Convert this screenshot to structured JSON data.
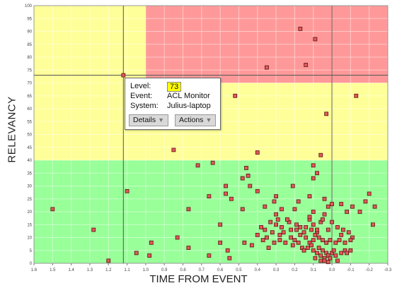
{
  "chart_data": {
    "type": "scatter",
    "xlabel": "TIME FROM EVENT",
    "ylabel": "RELEVANCY",
    "xlim": [
      1.6,
      -0.3
    ],
    "ylim": [
      0,
      100
    ],
    "x_reversed": true,
    "x_ticks": [
      "1.6",
      "1.5",
      "1.4",
      "1.3",
      "1.2",
      "1.1",
      "1.0",
      "0.9",
      "0.8",
      "0.7",
      "0.6",
      "0.5",
      "0.4",
      "0.3",
      "0.2",
      "0.1",
      "0.0",
      "-0.1",
      "-0.2",
      "-0.3"
    ],
    "y_ticks": [
      "0",
      "5",
      "10",
      "15",
      "20",
      "25",
      "30",
      "35",
      "40",
      "45",
      "50",
      "55",
      "60",
      "65",
      "70",
      "75",
      "80",
      "85",
      "90",
      "95",
      "100"
    ],
    "zones": [
      {
        "name": "high",
        "y_from": 70,
        "y_to": 100,
        "x_from": 1.6,
        "x_to": -0.3,
        "color": "#ffff99"
      },
      {
        "name": "critical",
        "y_from": 70,
        "y_to": 100,
        "x_from": 1.0,
        "x_to": -0.3,
        "color": "#ff9999"
      },
      {
        "name": "medium",
        "y_from": 40,
        "y_to": 70,
        "x_from": 1.6,
        "x_to": -0.3,
        "color": "#ffff99"
      },
      {
        "name": "low",
        "y_from": 0,
        "y_to": 40,
        "x_from": 1.6,
        "x_to": -0.3,
        "color": "#99ff99"
      }
    ],
    "crosshair": {
      "x": 1.12,
      "y": 73
    },
    "reference_line_x": 0.0,
    "marker_color": "#e05a5a",
    "points": [
      [
        1.12,
        73
      ],
      [
        0.17,
        91
      ],
      [
        0.09,
        87
      ],
      [
        0.35,
        76
      ],
      [
        0.14,
        77
      ],
      [
        0.52,
        65
      ],
      [
        -0.13,
        65
      ],
      [
        0.03,
        58
      ],
      [
        0.85,
        44
      ],
      [
        0.4,
        43
      ],
      [
        0.06,
        42
      ],
      [
        0.1,
        38
      ],
      [
        0.72,
        38
      ],
      [
        0.64,
        39
      ],
      [
        0.46,
        37
      ],
      [
        0.45,
        34
      ],
      [
        0.44,
        30
      ],
      [
        0.48,
        33
      ],
      [
        0.4,
        28
      ],
      [
        0.08,
        35
      ],
      [
        0.1,
        33
      ],
      [
        0.21,
        30
      ],
      [
        1.1,
        28
      ],
      [
        0.57,
        30
      ],
      [
        0.66,
        26
      ],
      [
        0.57,
        27
      ],
      [
        0.54,
        25
      ],
      [
        0.3,
        26
      ],
      [
        -0.2,
        27
      ],
      [
        -0.18,
        24
      ],
      [
        0.12,
        26
      ],
      [
        0.04,
        25
      ],
      [
        0.18,
        24
      ],
      [
        0.31,
        24
      ],
      [
        0.2,
        21
      ],
      [
        0.0,
        23
      ],
      [
        -0.05,
        23
      ],
      [
        -0.08,
        20
      ],
      [
        0.1,
        20
      ],
      [
        0.02,
        22
      ],
      [
        0.36,
        22
      ],
      [
        -0.11,
        22
      ],
      [
        1.5,
        21
      ],
      [
        0.77,
        21
      ],
      [
        0.48,
        21
      ],
      [
        0.27,
        21
      ],
      [
        -0.15,
        20
      ],
      [
        0.3,
        19
      ],
      [
        0.12,
        17
      ],
      [
        -0.23,
        22
      ],
      [
        0.04,
        19
      ],
      [
        0.06,
        16
      ],
      [
        0.0,
        16
      ],
      [
        0.05,
        17
      ],
      [
        0.12,
        18
      ],
      [
        0.1,
        15
      ],
      [
        0.6,
        15
      ],
      [
        0.3,
        15
      ],
      [
        0.27,
        14
      ],
      [
        0.22,
        13
      ],
      [
        0.36,
        13
      ],
      [
        0.4,
        11
      ],
      [
        0.19,
        13
      ],
      [
        0.15,
        12
      ],
      [
        0.08,
        12
      ],
      [
        -0.05,
        11
      ],
      [
        -0.11,
        10
      ],
      [
        -0.22,
        15
      ],
      [
        1.28,
        13
      ],
      [
        0.97,
        8
      ],
      [
        0.83,
        10
      ],
      [
        0.77,
        6
      ],
      [
        0.6,
        8
      ],
      [
        0.56,
        5
      ],
      [
        0.47,
        8
      ],
      [
        0.37,
        9
      ],
      [
        0.35,
        10
      ],
      [
        0.31,
        8
      ],
      [
        0.28,
        9
      ],
      [
        0.25,
        8
      ],
      [
        0.22,
        10
      ],
      [
        0.2,
        9
      ],
      [
        0.18,
        8
      ],
      [
        0.17,
        11
      ],
      [
        0.14,
        10
      ],
      [
        0.12,
        8
      ],
      [
        0.1,
        9
      ],
      [
        0.09,
        11
      ],
      [
        0.07,
        10
      ],
      [
        0.05,
        9
      ],
      [
        0.03,
        8
      ],
      [
        0.01,
        9
      ],
      [
        -0.02,
        8
      ],
      [
        -0.04,
        9
      ],
      [
        -0.07,
        8
      ],
      [
        -0.09,
        12
      ],
      [
        -0.1,
        9
      ],
      [
        0.21,
        7
      ],
      [
        0.16,
        6
      ],
      [
        0.15,
        5
      ],
      [
        0.13,
        6
      ],
      [
        0.11,
        7
      ],
      [
        0.1,
        5
      ],
      [
        0.08,
        4
      ],
      [
        0.07,
        6
      ],
      [
        0.06,
        3
      ],
      [
        0.05,
        5
      ],
      [
        0.04,
        2
      ],
      [
        0.03,
        4
      ],
      [
        0.02,
        3
      ],
      [
        0.01,
        2
      ],
      [
        0.0,
        4
      ],
      [
        -0.01,
        5
      ],
      [
        -0.02,
        3
      ],
      [
        -0.03,
        1
      ],
      [
        -0.05,
        4
      ],
      [
        -0.07,
        5
      ],
      [
        -0.08,
        4
      ],
      [
        -0.1,
        5
      ],
      [
        0.09,
        2
      ],
      [
        0.06,
        1
      ],
      [
        0.04,
        1
      ],
      [
        0.02,
        0.5
      ],
      [
        1.05,
        4
      ],
      [
        0.98,
        3
      ],
      [
        1.2,
        1
      ],
      [
        0.66,
        3
      ],
      [
        0.55,
        2
      ],
      [
        0.43,
        7
      ],
      [
        0.34,
        6
      ],
      [
        0.32,
        12
      ],
      [
        0.26,
        12
      ],
      [
        0.23,
        16
      ],
      [
        0.19,
        15
      ],
      [
        0.17,
        14
      ],
      [
        0.14,
        14
      ],
      [
        0.11,
        13
      ],
      [
        0.08,
        13
      ],
      [
        0.02,
        13
      ],
      [
        -0.03,
        14
      ],
      [
        -0.06,
        13
      ],
      [
        0.24,
        17
      ],
      [
        0.29,
        17
      ],
      [
        0.33,
        16
      ],
      [
        0.38,
        14
      ],
      [
        0.28,
        11
      ]
    ]
  },
  "popup": {
    "level_label": "Level:",
    "level_value": "73",
    "event_label": "Event:",
    "event_value": "ACL Monitor",
    "system_label": "System:",
    "system_value": "Julius-laptop",
    "details_button": "Details",
    "actions_button": "Actions"
  }
}
